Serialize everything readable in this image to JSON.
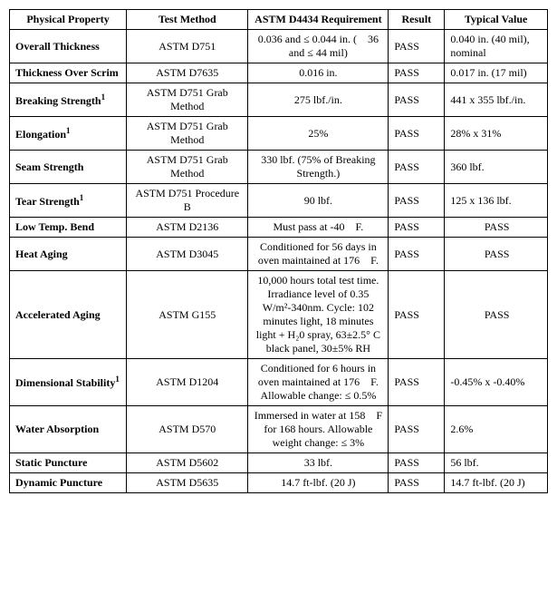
{
  "headers": {
    "c1": "Physical Property",
    "c2": "Test Method",
    "c3": "ASTM D4434 Requirement",
    "c4": "Result",
    "c5": "Typical Value"
  },
  "rows": [
    {
      "prop": "Overall Thickness",
      "sup": "",
      "method": "ASTM D751",
      "req": "0.036 and ≤ 0.044 in. ( 36 and ≤ 44 mil)",
      "result": "PASS",
      "typ": "0.040 in. (40 mil), nominal"
    },
    {
      "prop": "Thickness Over Scrim",
      "sup": "",
      "method": "ASTM D7635",
      "req": "0.016 in.",
      "result": "PASS",
      "typ": "0.017 in. (17 mil)"
    },
    {
      "prop": "Breaking Strength",
      "sup": "1",
      "method": "ASTM D751 Grab Method",
      "req": "275 lbf./in.",
      "result": "PASS",
      "typ": "441 x 355 lbf./in."
    },
    {
      "prop": "Elongation",
      "sup": "1",
      "method": "ASTM D751 Grab Method",
      "req": "25%",
      "result": "PASS",
      "typ": "28% x 31%"
    },
    {
      "prop": "Seam Strength",
      "sup": "",
      "method": "ASTM D751 Grab Method",
      "req": "330 lbf. (75% of Breaking Strength.)",
      "result": "PASS",
      "typ": "360 lbf."
    },
    {
      "prop": "Tear Strength",
      "sup": "1",
      "method": "ASTM D751 Procedure B",
      "req": "90 lbf.",
      "result": "PASS",
      "typ": "125 x 136 lbf."
    },
    {
      "prop": "Low Temp. Bend",
      "sup": "",
      "method": "ASTM D2136",
      "req": "Must pass at -40 F.",
      "result": "PASS",
      "typ": "PASS",
      "typCenter": true
    },
    {
      "prop": "Heat Aging",
      "sup": "",
      "method": "ASTM D3045",
      "req": "Conditioned for 56 days in oven maintained at 176 F.",
      "result": "PASS",
      "typ": "PASS",
      "typCenter": true
    },
    {
      "prop": "Accelerated Aging",
      "sup": "",
      "method": "ASTM G155",
      "req": "10,000 hours total test time. Irradiance level of 0.35 W/m²-340nm. Cycle: 102 minutes light, 18 minutes light + H₂0 spray, 63±2.5° C black panel, 30±5% RH",
      "result": "PASS",
      "typ": "PASS",
      "typCenter": true
    },
    {
      "prop": "Dimensional Stability",
      "sup": "1",
      "method": "ASTM D1204",
      "req": "Conditioned for 6 hours in oven maintained at 176 F. Allowable change: ≤ 0.5%",
      "result": "PASS",
      "typ": "-0.45% x -0.40%"
    },
    {
      "prop": "Water Absorption",
      "sup": "",
      "method": "ASTM D570",
      "req": "Immersed in water at 158 F for 168 hours. Allowable weight change: ≤ 3%",
      "result": "PASS",
      "typ": "2.6%"
    },
    {
      "prop": "Static Puncture",
      "sup": "",
      "method": "ASTM D5602",
      "req": "33 lbf.",
      "result": "PASS",
      "typ": "56 lbf."
    },
    {
      "prop": "Dynamic Puncture",
      "sup": "",
      "method": "ASTM D5635",
      "req": "14.7 ft-lbf. (20 J)",
      "result": "PASS",
      "typ": "14.7 ft-lbf. (20 J)"
    }
  ]
}
